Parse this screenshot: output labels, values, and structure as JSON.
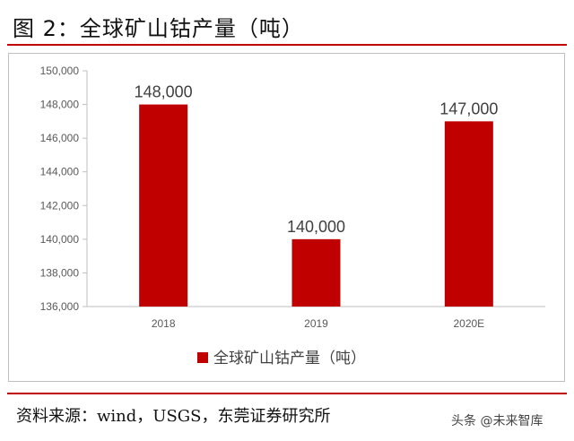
{
  "header": {
    "title": "图 2：全球矿山钴产量（吨）"
  },
  "footer": {
    "source": "资料来源：wind，USGS，东莞证券研究所",
    "watermark": "头条 @未来智库"
  },
  "colors": {
    "bar": "#c00000",
    "rule": "#c00000",
    "grid": "#d9d9d9"
  },
  "chart_data": {
    "type": "bar",
    "categories": [
      "2018",
      "2019",
      "2020E"
    ],
    "series": [
      {
        "name": "全球矿山钴产量（吨）",
        "values": [
          148000,
          140000,
          147000
        ]
      }
    ],
    "data_labels": [
      "148,000",
      "140,000",
      "147,000"
    ],
    "ylim": [
      136000,
      150000
    ],
    "yticks": [
      136000,
      138000,
      140000,
      142000,
      144000,
      146000,
      148000,
      150000
    ],
    "ytick_labels": [
      "136,000",
      "138,000",
      "140,000",
      "142,000",
      "144,000",
      "146,000",
      "148,000",
      "150,000"
    ],
    "grid": false,
    "legend": "bottom"
  }
}
